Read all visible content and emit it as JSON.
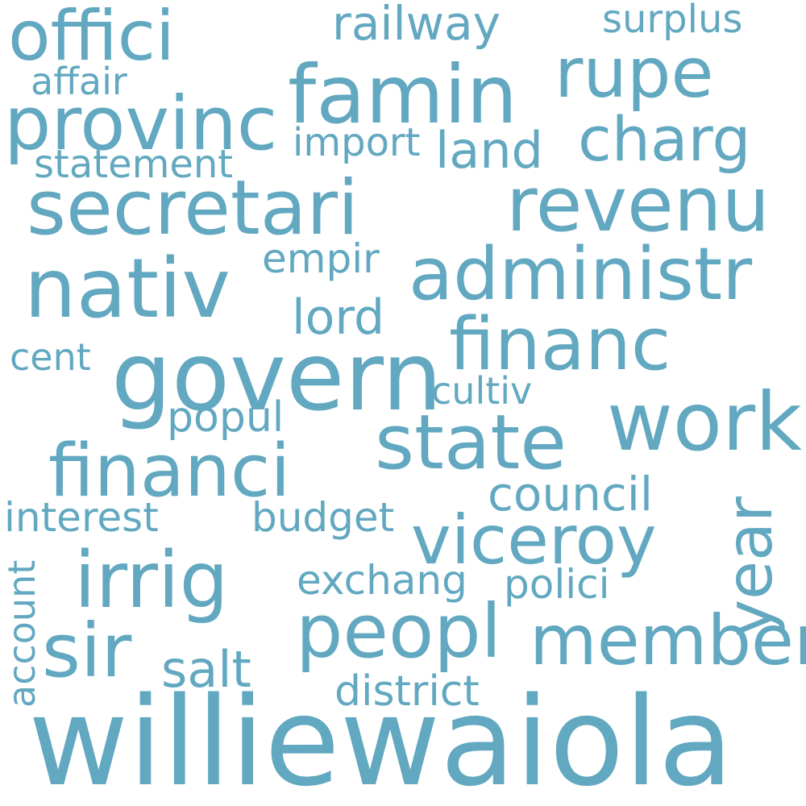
{
  "palette": {
    "background": "#ffffff",
    "word": "#62a8c0"
  },
  "words": {
    "offici": "offici",
    "railway": "railway",
    "surplus": "surplus",
    "famin": "famin",
    "rupe": "rupe",
    "affair": "affair",
    "provinc": "provinc",
    "charg": "charg",
    "import": "import",
    "land": "land",
    "statement": "statement",
    "secretari": "secretari",
    "revenu": "revenu",
    "empir": "empir",
    "nativ": "nativ",
    "administr": "administr",
    "lord": "lord",
    "financ": "financ",
    "cent": "cent",
    "govern": "govern",
    "cultiv": "cultiv",
    "work": "work",
    "popul": "popul",
    "state": "state",
    "financi": "financi",
    "year": "year",
    "council": "council",
    "interest": "interest",
    "budget": "budget",
    "viceroy": "viceroy",
    "account": "account",
    "irrig": "irrig",
    "exchang": "exchang",
    "polici": "polici",
    "peopl": "peopl",
    "member": "member",
    "sir": "sir",
    "salt": "salt",
    "district": "district",
    "williewaiola": "williewaiola"
  }
}
